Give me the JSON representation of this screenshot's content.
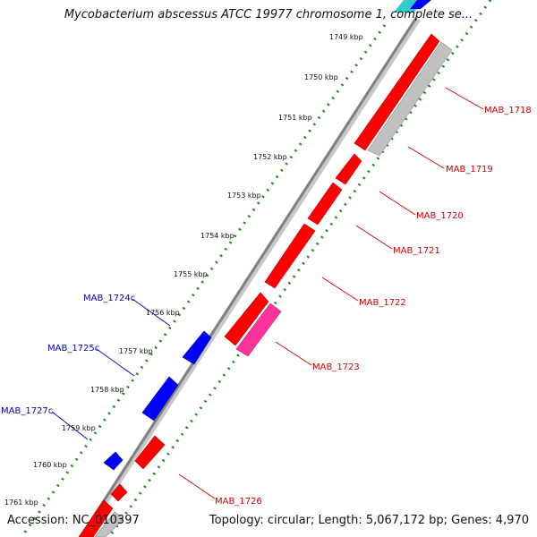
{
  "title": "Mycobacterium abscessus ATCC 19977 chromosome 1, complete se...",
  "footer": {
    "accession": "Accession: NC_010397",
    "summary": "Topology: circular; Length: 5,067,172 bp; Genes: 4,970"
  },
  "scale_ticks": [
    {
      "label": "1749 kbp"
    },
    {
      "label": "1750 kbp"
    },
    {
      "label": "1751 kbp"
    },
    {
      "label": "1752 kbp"
    },
    {
      "label": "1753 kbp"
    },
    {
      "label": "1754 kbp"
    },
    {
      "label": "1755 kbp"
    },
    {
      "label": "1756 kbp"
    },
    {
      "label": "1757 kbp"
    },
    {
      "label": "1758 kbp"
    },
    {
      "label": "1759 kbp"
    },
    {
      "label": "1760 kbp"
    },
    {
      "label": "1761 kbp"
    }
  ],
  "gene_labels": {
    "forward": [
      "MAB_1718",
      "MAB_1719",
      "MAB_1720",
      "MAB_1721",
      "MAB_1722",
      "MAB_1723",
      "MAB_1726"
    ],
    "reverse": [
      "MAB_1724c",
      "MAB_1725c",
      "MAB_1727c"
    ]
  },
  "colors": {
    "forward_cds": "#ff0000",
    "reverse_cds": "#0000ff",
    "pseudo_gray": "#c0c0c0",
    "misc_pink": "#ff3399",
    "backbone": "#808080",
    "dotted_ring": "#1a8a1a",
    "forward_label": "#d00000",
    "reverse_label": "#0000c0"
  }
}
